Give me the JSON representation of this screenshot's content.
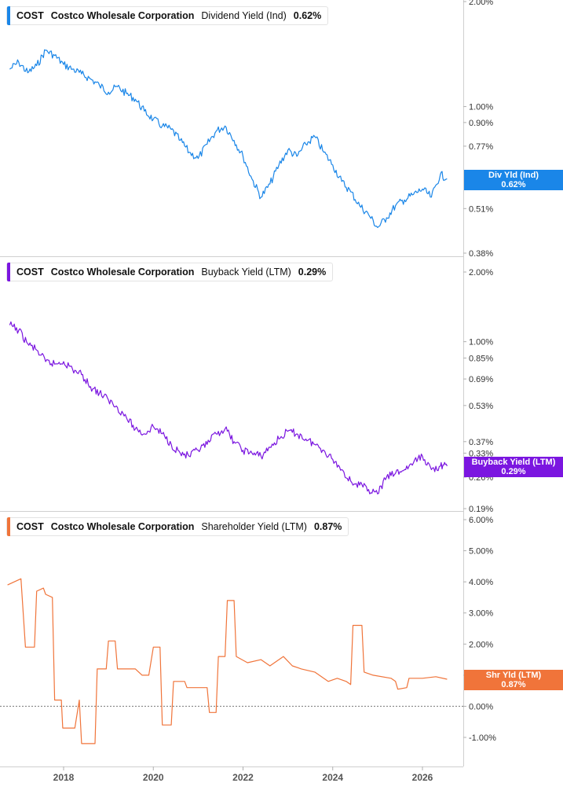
{
  "colors": {
    "dividend": "#1a86e8",
    "buyback": "#7b16e0",
    "shareholder": "#f0743a",
    "grid": "#d6d6d6",
    "axis_text": "#333333"
  },
  "x_axis": {
    "ticks": [
      "2018",
      "2020",
      "2022",
      "2024",
      "2026"
    ]
  },
  "panels": [
    {
      "ticker": "COST",
      "company": "Costco Wholesale Corporation",
      "metric": "Dividend Yield (Ind)",
      "value": "0.62%",
      "tag_label": "Div Yld (Ind)",
      "tag_value": "0.62%",
      "y_ticks": [
        "2.00%",
        "1.00%",
        "0.90%",
        "0.77%",
        "0.51%",
        "0.38%"
      ],
      "y_tick_values": [
        2.0,
        1.0,
        0.9,
        0.77,
        0.51,
        0.38
      ],
      "scale": "log",
      "y_range": [
        0.38,
        2.0
      ]
    },
    {
      "ticker": "COST",
      "company": "Costco Wholesale Corporation",
      "metric": "Buyback Yield (LTM)",
      "value": "0.29%",
      "tag_label": "Buyback Yield (LTM)",
      "tag_value": "0.29%",
      "y_ticks": [
        "2.00%",
        "1.00%",
        "0.85%",
        "0.69%",
        "0.53%",
        "0.37%",
        "0.33%",
        "0.26%",
        "0.19%"
      ],
      "y_tick_values": [
        2.0,
        1.0,
        0.85,
        0.69,
        0.53,
        0.37,
        0.33,
        0.26,
        0.19
      ],
      "scale": "log",
      "y_range": [
        0.19,
        2.0
      ]
    },
    {
      "ticker": "COST",
      "company": "Costco Wholesale Corporation",
      "metric": "Shareholder Yield (LTM)",
      "value": "0.87%",
      "tag_label": "Shr Yld (LTM)",
      "tag_value": "0.87%",
      "y_ticks": [
        "6.00%",
        "5.00%",
        "4.00%",
        "3.00%",
        "2.00%",
        "1.00%",
        "0.00%",
        "-1.00%"
      ],
      "y_tick_values": [
        6,
        5,
        4,
        3,
        2,
        1,
        0,
        -1
      ],
      "scale": "linear",
      "y_range": [
        -1.0,
        6.0
      ]
    }
  ],
  "chart_data": [
    {
      "type": "line",
      "title": "COST Costco Wholesale Corporation Dividend Yield (Ind) 0.62%",
      "ylabel": "Dividend Yield (Ind)",
      "y_scale": "log",
      "ylim": [
        0.38,
        2.0
      ],
      "x": [
        2016.8,
        2017.0,
        2017.2,
        2017.4,
        2017.6,
        2017.8,
        2018.0,
        2018.2,
        2018.4,
        2018.6,
        2018.8,
        2019.0,
        2019.2,
        2019.4,
        2019.6,
        2019.8,
        2020.0,
        2020.2,
        2020.4,
        2020.6,
        2020.8,
        2021.0,
        2021.2,
        2021.4,
        2021.6,
        2021.8,
        2022.0,
        2022.2,
        2022.4,
        2022.6,
        2022.8,
        2023.0,
        2023.2,
        2023.4,
        2023.6,
        2023.8,
        2024.0,
        2024.2,
        2024.4,
        2024.6,
        2024.8,
        2025.0,
        2025.2,
        2025.4,
        2025.6,
        2025.8,
        2026.0,
        2026.2,
        2026.4,
        2026.55
      ],
      "series": [
        {
          "values": [
            1.28,
            1.34,
            1.25,
            1.31,
            1.45,
            1.4,
            1.32,
            1.28,
            1.24,
            1.2,
            1.15,
            1.1,
            1.14,
            1.09,
            1.05,
            0.97,
            0.92,
            0.88,
            0.86,
            0.8,
            0.74,
            0.71,
            0.78,
            0.85,
            0.88,
            0.8,
            0.72,
            0.62,
            0.55,
            0.6,
            0.68,
            0.75,
            0.72,
            0.78,
            0.82,
            0.74,
            0.68,
            0.61,
            0.57,
            0.52,
            0.49,
            0.45,
            0.48,
            0.52,
            0.54,
            0.56,
            0.58,
            0.55,
            0.64,
            0.62
          ]
        }
      ]
    },
    {
      "type": "line",
      "title": "COST Costco Wholesale Corporation Buyback Yield (LTM) 0.29%",
      "ylabel": "Buyback Yield (LTM)",
      "y_scale": "log",
      "ylim": [
        0.19,
        2.0
      ],
      "x": [
        2016.8,
        2017.0,
        2017.2,
        2017.4,
        2017.6,
        2017.8,
        2018.0,
        2018.2,
        2018.4,
        2018.6,
        2018.8,
        2019.0,
        2019.2,
        2019.4,
        2019.6,
        2019.8,
        2020.0,
        2020.2,
        2020.4,
        2020.6,
        2020.8,
        2021.0,
        2021.2,
        2021.4,
        2021.6,
        2021.8,
        2022.0,
        2022.2,
        2022.4,
        2022.6,
        2022.8,
        2023.0,
        2023.2,
        2023.4,
        2023.6,
        2023.8,
        2024.0,
        2024.2,
        2024.4,
        2024.6,
        2024.8,
        2025.0,
        2025.2,
        2025.4,
        2025.6,
        2025.8,
        2026.0,
        2026.2,
        2026.4,
        2026.55
      ],
      "series": [
        {
          "values": [
            1.18,
            1.12,
            0.98,
            0.92,
            0.82,
            0.8,
            0.82,
            0.76,
            0.72,
            0.64,
            0.6,
            0.56,
            0.52,
            0.47,
            0.42,
            0.4,
            0.43,
            0.4,
            0.36,
            0.33,
            0.32,
            0.34,
            0.36,
            0.4,
            0.42,
            0.37,
            0.34,
            0.33,
            0.32,
            0.35,
            0.38,
            0.41,
            0.4,
            0.38,
            0.36,
            0.34,
            0.31,
            0.28,
            0.25,
            0.24,
            0.23,
            0.22,
            0.26,
            0.27,
            0.28,
            0.3,
            0.32,
            0.28,
            0.29,
            0.29
          ]
        }
      ]
    },
    {
      "type": "line",
      "title": "COST Costco Wholesale Corporation Shareholder Yield (LTM) 0.87%",
      "ylabel": "Shareholder Yield (LTM)",
      "y_scale": "linear",
      "ylim": [
        -1.0,
        6.0
      ],
      "x": [
        2016.75,
        2017.05,
        2017.15,
        2017.35,
        2017.4,
        2017.55,
        2017.6,
        2017.75,
        2017.8,
        2017.95,
        2017.98,
        2018.2,
        2018.25,
        2018.35,
        2018.4,
        2018.7,
        2018.75,
        2018.95,
        2019.0,
        2019.15,
        2019.2,
        2019.6,
        2019.75,
        2019.9,
        2020.0,
        2020.15,
        2020.2,
        2020.4,
        2020.45,
        2020.7,
        2020.75,
        2021.2,
        2021.25,
        2021.4,
        2021.45,
        2021.6,
        2021.65,
        2021.8,
        2021.85,
        2022.1,
        2022.4,
        2022.6,
        2022.9,
        2023.1,
        2023.3,
        2023.6,
        2023.9,
        2024.1,
        2024.3,
        2024.4,
        2024.45,
        2024.65,
        2024.7,
        2024.9,
        2025.3,
        2025.4,
        2025.45,
        2025.65,
        2025.7,
        2026.0,
        2026.3,
        2026.55
      ],
      "series": [
        {
          "values": [
            3.9,
            4.1,
            1.9,
            1.9,
            3.7,
            3.8,
            3.6,
            3.5,
            0.2,
            0.2,
            -0.7,
            -0.7,
            -0.7,
            0.2,
            -1.2,
            -1.2,
            1.2,
            1.2,
            2.1,
            2.1,
            1.2,
            1.2,
            1.0,
            1.0,
            1.9,
            1.9,
            -0.6,
            -0.6,
            0.8,
            0.8,
            0.6,
            0.6,
            -0.2,
            -0.2,
            1.6,
            1.6,
            3.4,
            3.4,
            1.6,
            1.4,
            1.5,
            1.3,
            1.6,
            1.3,
            1.2,
            1.1,
            0.8,
            0.9,
            0.8,
            0.7,
            2.6,
            2.6,
            1.1,
            1.0,
            0.9,
            0.8,
            0.55,
            0.6,
            0.9,
            0.9,
            0.95,
            0.87
          ]
        }
      ]
    }
  ]
}
